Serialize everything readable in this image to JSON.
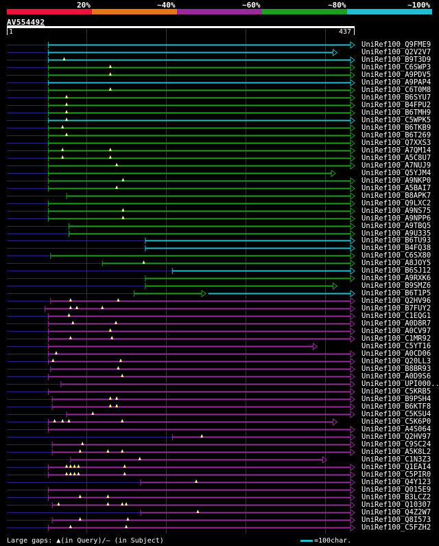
{
  "legend": {
    "labels": [
      "20%",
      "~40%",
      "~60%",
      "~80%",
      "~100%"
    ],
    "colors": [
      "#e8143c",
      "#e87419",
      "#9b2b9b",
      "#1e9f1e",
      "#1fbfcf"
    ]
  },
  "query": {
    "name": "AV554492",
    "start_label": "1",
    "end_label": "437",
    "length": 437
  },
  "footer": {
    "gaps_text": "Large gaps: ▲(in Query)/– (in Subject)",
    "scale_text": "=100char."
  },
  "colors": {
    "cyan": "#1fbfcf",
    "green": "#1e9f1e",
    "purple": "#9b2b9b",
    "dim": "#23238a",
    "gap": "#ffffa0"
  },
  "hits": [
    {
      "label": "UniRef100_Q9FME9",
      "color": "cyan",
      "s": 52,
      "e": 437,
      "arrow": true
    },
    {
      "label": "UniRef100_Q2V2V7",
      "color": "cyan",
      "s": 52,
      "e": 415,
      "arrow": true
    },
    {
      "label": "UniRef100_B9T3D9",
      "color": "cyan",
      "s": 52,
      "e": 437,
      "arrow": true,
      "gaps": [
        72
      ]
    },
    {
      "label": "UniRef100_C6SWP3",
      "color": "green",
      "s": 52,
      "e": 437,
      "arrow": true,
      "gaps": [
        130
      ]
    },
    {
      "label": "UniRef100_A9PDV5",
      "color": "green",
      "s": 52,
      "e": 437,
      "arrow": true,
      "gaps": [
        130
      ]
    },
    {
      "label": "UniRef100_A9PAP4",
      "color": "cyan",
      "s": 52,
      "e": 437,
      "arrow": true
    },
    {
      "label": "UniRef100_C6T0M8",
      "color": "green",
      "s": 52,
      "e": 437,
      "arrow": true,
      "gaps": [
        130
      ]
    },
    {
      "label": "UniRef100_B6SYU7",
      "color": "green",
      "s": 52,
      "e": 437,
      "arrow": true,
      "gaps": [
        75
      ]
    },
    {
      "label": "UniRef100_B4FPU2",
      "color": "green",
      "s": 52,
      "e": 437,
      "arrow": true,
      "gaps": [
        75
      ]
    },
    {
      "label": "UniRef100_B6TMH9",
      "color": "green",
      "s": 52,
      "e": 437,
      "arrow": true,
      "gaps": [
        75
      ]
    },
    {
      "label": "UniRef100_C5WPK5",
      "color": "cyan",
      "s": 52,
      "e": 437,
      "arrow": true,
      "gaps": [
        75
      ]
    },
    {
      "label": "UniRef100_B6TKB9",
      "color": "green",
      "s": 52,
      "e": 437,
      "arrow": true,
      "gaps": [
        70
      ]
    },
    {
      "label": "UniRef100_B6T269",
      "color": "green",
      "s": 52,
      "e": 437,
      "arrow": true,
      "gaps": [
        75
      ]
    },
    {
      "label": "UniRef100_Q7XXS3",
      "color": "green",
      "s": 52,
      "e": 437,
      "arrow": true
    },
    {
      "label": "UniRef100_A7QM14",
      "color": "green",
      "s": 52,
      "e": 437,
      "arrow": true,
      "gaps": [
        70,
        130
      ]
    },
    {
      "label": "UniRef100_A5C8U7",
      "color": "green",
      "s": 52,
      "e": 437,
      "arrow": true,
      "gaps": [
        70,
        130
      ]
    },
    {
      "label": "UniRef100_A7NUJ9",
      "color": "green",
      "s": 52,
      "e": 437,
      "arrow": true,
      "gaps": [
        138
      ]
    },
    {
      "label": "UniRef100_Q5YJM4",
      "color": "green",
      "s": 52,
      "e": 413,
      "arrow": true
    },
    {
      "label": "UniRef100_A9NKP0",
      "color": "green",
      "s": 52,
      "e": 437,
      "arrow": true,
      "gaps": [
        146
      ]
    },
    {
      "label": "UniRef100_A5BAI7",
      "color": "green",
      "s": 52,
      "e": 437,
      "arrow": true,
      "gaps": [
        138
      ]
    },
    {
      "label": "UniRef100_B8APK7",
      "color": "green",
      "s": 75,
      "e": 437,
      "arrow": true
    },
    {
      "label": "UniRef100_Q9LXC2",
      "color": "green",
      "s": 52,
      "e": 437,
      "arrow": true
    },
    {
      "label": "UniRef100_A9NS75",
      "color": "green",
      "s": 52,
      "e": 437,
      "arrow": true,
      "gaps": [
        146
      ]
    },
    {
      "label": "UniRef100_A9NPP6",
      "color": "green",
      "s": 52,
      "e": 437,
      "arrow": true,
      "gaps": [
        146
      ]
    },
    {
      "label": "UniRef100_A9TBQ5",
      "color": "green",
      "s": 78,
      "e": 437,
      "arrow": true
    },
    {
      "label": "UniRef100_A9U335",
      "color": "green",
      "s": 78,
      "e": 437,
      "arrow": true
    },
    {
      "label": "UniRef100_B6TU93",
      "color": "cyan",
      "s": 174,
      "e": 437,
      "arrow": true
    },
    {
      "label": "UniRef100_B4FQ38",
      "color": "cyan",
      "s": 174,
      "e": 437,
      "arrow": true
    },
    {
      "label": "UniRef100_C6SX80",
      "color": "green",
      "s": 55,
      "e": 437,
      "arrow": true
    },
    {
      "label": "UniRef100_A8JOY5",
      "color": "green",
      "s": 120,
      "e": 437,
      "arrow": true,
      "gaps": [
        172
      ]
    },
    {
      "label": "UniRef100_B6SJ12",
      "color": "cyan",
      "s": 208,
      "e": 437,
      "arrow": true
    },
    {
      "label": "UniRef100_A9RXK6",
      "color": "green",
      "s": 174,
      "e": 437,
      "arrow": true
    },
    {
      "label": "UniRef100_B9SMZ6",
      "color": "green",
      "s": 174,
      "e": 415,
      "arrow": true
    },
    {
      "label": "UniRef100_B6T1P5",
      "color": "green",
      "s": 160,
      "e": 250,
      "arrow": true,
      "s2": 253,
      "e2": 437,
      "color2": "cyan"
    },
    {
      "label": "UniRef100_Q2HV96",
      "color": "purple",
      "s": 55,
      "e": 437,
      "arrow": true,
      "gaps": [
        80,
        140
      ]
    },
    {
      "label": "UniRef100_B7FUY2",
      "color": "purple",
      "s": 48,
      "e": 437,
      "arrow": true,
      "gaps": [
        80,
        88,
        120
      ]
    },
    {
      "label": "UniRef100_C1EQG1",
      "color": "purple",
      "s": 52,
      "e": 437,
      "arrow": true,
      "gaps": [
        78
      ]
    },
    {
      "label": "UniRef100_A0D8R7",
      "color": "purple",
      "s": 52,
      "e": 437,
      "arrow": true,
      "gaps": [
        83,
        137
      ]
    },
    {
      "label": "UniRef100_A0CV97",
      "color": "purple",
      "s": 52,
      "e": 437,
      "arrow": true,
      "gaps": [
        130
      ]
    },
    {
      "label": "UniRef100_C1MR92",
      "color": "purple",
      "s": 52,
      "e": 437,
      "arrow": true,
      "gaps": [
        80,
        132
      ]
    },
    {
      "label": "UniRef100_C5YT16",
      "color": "purple",
      "s": 52,
      "e": 390,
      "arrow": true
    },
    {
      "label": "UniRef100_A0CD06",
      "color": "purple",
      "s": 52,
      "e": 437,
      "arrow": true,
      "gaps": [
        62
      ]
    },
    {
      "label": "UniRef100_Q20LL3",
      "color": "purple",
      "s": 52,
      "e": 437,
      "arrow": true,
      "gaps": [
        58,
        143
      ]
    },
    {
      "label": "UniRef100_B8BR93",
      "color": "purple",
      "s": 55,
      "e": 437,
      "arrow": true,
      "gaps": [
        140
      ]
    },
    {
      "label": "UniRef100_A0D9S6",
      "color": "purple",
      "s": 52,
      "e": 437,
      "arrow": true,
      "gaps": [
        145
      ]
    },
    {
      "label": "UniRef100_UPI000..",
      "color": "purple",
      "s": 68,
      "e": 437,
      "arrow": true
    },
    {
      "label": "UniRef100_C5KRB5",
      "color": "purple",
      "s": 52,
      "e": 437,
      "arrow": true
    },
    {
      "label": "UniRef100_B9PSH4",
      "color": "purple",
      "s": 57,
      "e": 437,
      "arrow": true,
      "gaps": [
        130,
        138
      ]
    },
    {
      "label": "UniRef100_B6KTF8",
      "color": "purple",
      "s": 57,
      "e": 437,
      "arrow": true,
      "gaps": [
        130,
        138
      ]
    },
    {
      "label": "UniRef100_C5KSU4",
      "color": "purple",
      "s": 75,
      "e": 437,
      "arrow": true,
      "gaps": [
        108
      ]
    },
    {
      "label": "UniRef100_C5K6P0",
      "color": "purple",
      "s": 52,
      "e": 415,
      "arrow": true,
      "gaps": [
        60,
        70,
        78,
        145
      ]
    },
    {
      "label": "UniRef100_A4S064",
      "color": "purple",
      "s": 52,
      "e": 437,
      "arrow": true
    },
    {
      "label": "UniRef100_Q2HV97",
      "color": "purple",
      "s": 208,
      "e": 437,
      "arrow": true,
      "gaps": [
        245
      ]
    },
    {
      "label": "UniRef100_C9SC24",
      "color": "purple",
      "s": 57,
      "e": 437,
      "arrow": true,
      "gaps": [
        95
      ]
    },
    {
      "label": "UniRef100_A5K8L2",
      "color": "purple",
      "s": 57,
      "e": 437,
      "arrow": true,
      "gaps": [
        92,
        127,
        145
      ]
    },
    {
      "label": "UniRef100_C1N3Z3",
      "color": "purple",
      "s": 80,
      "e": 402,
      "arrow": true,
      "gaps": [
        167
      ]
    },
    {
      "label": "UniRef100_Q1EAI4",
      "color": "purple",
      "s": 52,
      "e": 437,
      "arrow": true,
      "gaps": [
        75,
        80,
        85,
        90,
        148
      ]
    },
    {
      "label": "UniRef100_C5PIR0",
      "color": "purple",
      "s": 52,
      "e": 437,
      "arrow": true,
      "gaps": [
        75,
        80,
        85,
        90,
        148
      ]
    },
    {
      "label": "UniRef100_Q4Y123",
      "color": "purple",
      "s": 168,
      "e": 437,
      "arrow": true,
      "gaps": [
        238
      ]
    },
    {
      "label": "UniRef100_Q015E9",
      "color": "purple",
      "s": 52,
      "e": 437,
      "arrow": true
    },
    {
      "label": "UniRef100_B3LCZ2",
      "color": "purple",
      "s": 52,
      "e": 437,
      "arrow": true,
      "gaps": [
        92,
        127
      ]
    },
    {
      "label": "UniRef100_Q10307",
      "color": "purple",
      "s": 57,
      "e": 437,
      "arrow": true,
      "gaps": [
        65,
        127,
        145,
        150
      ]
    },
    {
      "label": "UniRef100_Q4Z2W7",
      "color": "purple",
      "s": 168,
      "e": 437,
      "arrow": true,
      "gaps": [
        240
      ]
    },
    {
      "label": "UniRef100_Q8I573",
      "color": "purple",
      "s": 57,
      "e": 437,
      "arrow": true,
      "gaps": [
        92,
        152
      ]
    },
    {
      "label": "UniRef100_C5FZH2",
      "color": "purple",
      "s": 52,
      "e": 437,
      "arrow": true,
      "gaps": [
        80,
        150
      ]
    }
  ]
}
